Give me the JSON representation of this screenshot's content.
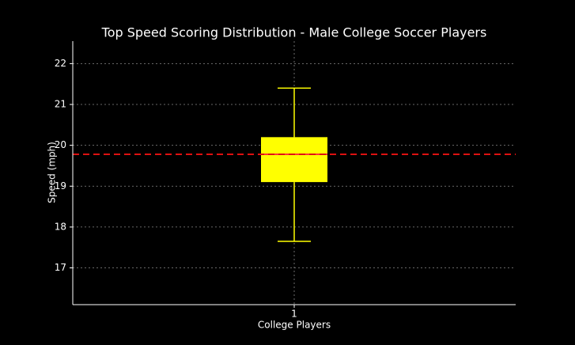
{
  "chart_data": {
    "type": "box",
    "title": "Top Speed Scoring Distribution - Male College Soccer Players",
    "x_label": "College Players",
    "y_label": "Speed (mph)",
    "categories": [
      "1"
    ],
    "boxes": [
      {
        "min": 17.65,
        "q1": 19.1,
        "median": 19.78,
        "q3": 20.2,
        "max": 21.4
      }
    ],
    "color": "#ffff00",
    "median_color": "#ff3333",
    "reference_line": {
      "value": 19.78,
      "color": "#dd1111",
      "style": "dashed"
    },
    "ylim": [
      16.1,
      22.55
    ],
    "yticks": [
      17,
      18,
      19,
      20,
      21,
      22
    ],
    "grid": true
  }
}
